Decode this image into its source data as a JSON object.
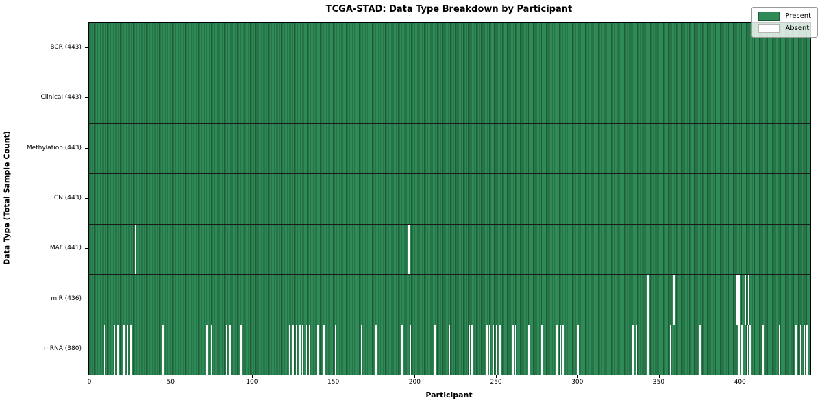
{
  "title": "TCGA-STAD: Data Type Breakdown by Participant",
  "legend": {
    "present_label": "Present",
    "absent_label": "Absent"
  },
  "colors": {
    "present_fill": "#2e8b57",
    "present_edge": "#1e5c38",
    "absent_fill": "#ffffff",
    "absent_edge": "#b5b5b5",
    "row_divider": "#1a1a1a",
    "spine": "#000000"
  },
  "chart_data": {
    "type": "heatmap",
    "title": "TCGA-STAD: Data Type Breakdown by Participant",
    "xlabel": "Participant",
    "ylabel": "Data Type (Total Sample Count)",
    "legend": [
      "Present",
      "Absent"
    ],
    "legend_position": "upper right",
    "grid": false,
    "n_participants": 443,
    "xlim": [
      0,
      443.5
    ],
    "x_ticks": [
      0,
      50,
      100,
      150,
      200,
      250,
      300,
      350,
      400
    ],
    "rows": [
      {
        "label": "BCR (443)",
        "data_type": "BCR",
        "present_count": 443,
        "absent_participants": []
      },
      {
        "label": "Clinical (443)",
        "data_type": "Clinical",
        "present_count": 443,
        "absent_participants": []
      },
      {
        "label": "Methylation (443)",
        "data_type": "Methylation",
        "present_count": 443,
        "absent_participants": []
      },
      {
        "label": "CN (443)",
        "data_type": "CN",
        "present_count": 443,
        "absent_participants": []
      },
      {
        "label": "MAF (441)",
        "data_type": "MAF",
        "present_count": 441,
        "absent_participants": [
          28,
          196
        ]
      },
      {
        "label": "miR (436)",
        "data_type": "miR",
        "present_count": 436,
        "absent_participants": [
          343,
          345,
          359,
          398,
          399,
          403,
          405
        ]
      },
      {
        "label": "mRNA (380)",
        "data_type": "mRNA",
        "present_count": 380,
        "absent_participants": [
          3,
          9,
          11,
          15,
          17,
          21,
          23,
          25,
          45,
          72,
          75,
          84,
          86,
          93,
          123,
          125,
          127,
          129,
          131,
          133,
          135,
          140,
          142,
          144,
          151,
          167,
          174,
          176,
          190,
          192,
          197,
          212,
          221,
          233,
          235,
          244,
          246,
          248,
          250,
          252,
          260,
          262,
          270,
          278,
          287,
          289,
          291,
          300,
          334,
          336,
          343,
          357,
          375,
          399,
          401,
          404,
          406,
          414,
          424,
          434,
          437,
          439,
          441
        ]
      }
    ]
  }
}
